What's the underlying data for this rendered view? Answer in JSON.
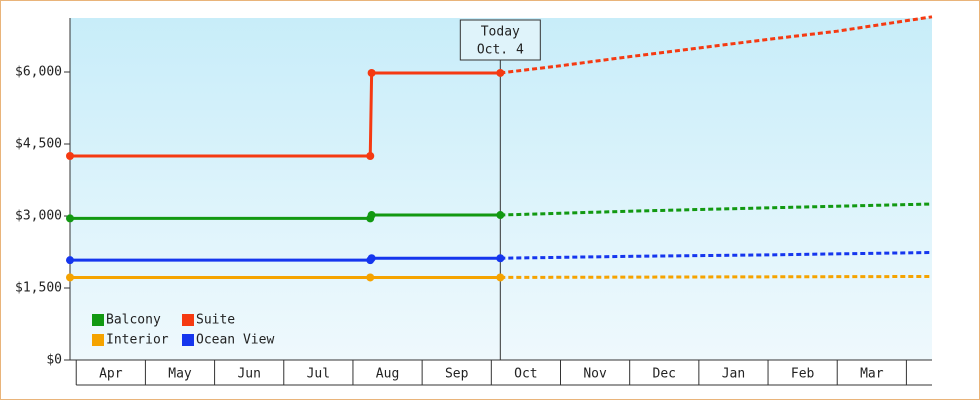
{
  "chart_data": {
    "type": "line",
    "categories": [
      "Apr",
      "May",
      "Jun",
      "Jul",
      "Aug",
      "Sep",
      "Oct",
      "Nov",
      "Dec",
      "Jan",
      "Feb",
      "Mar"
    ],
    "xlim": [
      -0.09,
      12.37
    ],
    "ylim": [
      0,
      7125
    ],
    "yticks": [
      {
        "value": 0,
        "label": "$0"
      },
      {
        "value": 1500,
        "label": "$1,500"
      },
      {
        "value": 3000,
        "label": "$3,000"
      },
      {
        "value": 4500,
        "label": "$4,500"
      },
      {
        "value": 6000,
        "label": "$6,000"
      }
    ],
    "today": {
      "x": 6.13,
      "label": "Today",
      "date": "Oct. 4"
    },
    "legend": "lower left",
    "series": [
      {
        "name": "Balcony",
        "color": "#129912",
        "x": [
          -0.09,
          4.25,
          4.27,
          6.13,
          8,
          10,
          12.37
        ],
        "values": [
          2950,
          2950,
          3020,
          3020,
          3100,
          3170,
          3250
        ]
      },
      {
        "name": "Suite",
        "color": "#f53a12",
        "x": [
          -0.09,
          4.25,
          4.27,
          6.13,
          7,
          8,
          9,
          10,
          11,
          12.37
        ],
        "values": [
          4250,
          4250,
          5980,
          5980,
          6130,
          6320,
          6500,
          6680,
          6850,
          7150
        ]
      },
      {
        "name": "Interior",
        "color": "#f5a300",
        "x": [
          -0.09,
          4.25,
          6.13,
          9,
          12.37
        ],
        "values": [
          1720,
          1720,
          1720,
          1730,
          1740
        ]
      },
      {
        "name": "Ocean View",
        "color": "#1536ee",
        "x": [
          -0.09,
          4.25,
          4.27,
          6.13,
          8,
          10,
          12.37
        ],
        "values": [
          2080,
          2080,
          2120,
          2120,
          2160,
          2190,
          2240
        ]
      }
    ]
  }
}
